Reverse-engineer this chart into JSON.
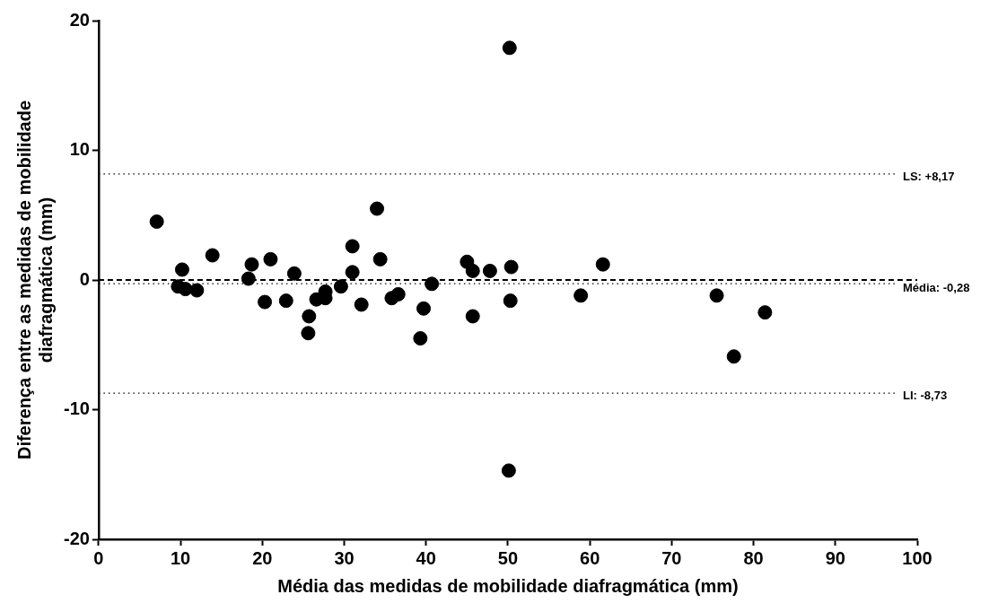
{
  "chart_data": {
    "type": "scatter",
    "xlabel": "Média das medidas de mobilidade diafragmática (mm)",
    "ylabel": "Diferença entre as medidas de mobilidade\ndiafragmática (mm)",
    "xlim": [
      0,
      100
    ],
    "xticks": [
      0,
      10,
      20,
      30,
      40,
      50,
      60,
      70,
      80,
      90,
      100
    ],
    "ylim": [
      -20,
      20
    ],
    "yticks": [
      -20,
      -10,
      0,
      10,
      20
    ],
    "grid": false,
    "legend": false,
    "marker": "circle",
    "x": [
      7.1,
      10.2,
      9.7,
      10.6,
      12.0,
      13.9,
      18.3,
      18.7,
      21.0,
      20.3,
      22.9,
      23.9,
      25.7,
      25.6,
      26.6,
      27.7,
      27.7,
      29.6,
      31.0,
      31.0,
      32.1,
      34.0,
      34.4,
      35.8,
      36.6,
      39.7,
      39.3,
      40.7,
      45.0,
      45.7,
      47.8,
      45.7,
      50.4,
      50.3,
      50.2,
      50.1,
      58.9,
      61.6,
      75.5,
      81.4,
      77.6
    ],
    "series": [
      {
        "color": "#000000",
        "values": [
          4.5,
          0.8,
          -0.5,
          -0.7,
          -0.8,
          1.9,
          0.1,
          1.2,
          1.6,
          -1.7,
          -1.6,
          0.5,
          -2.8,
          -4.1,
          -1.5,
          -1.4,
          -0.9,
          -0.5,
          2.6,
          0.6,
          -1.9,
          5.5,
          1.6,
          -1.4,
          -1.1,
          -2.2,
          -4.5,
          -0.3,
          1.4,
          0.7,
          0.7,
          -2.8,
          1.0,
          -1.6,
          17.9,
          -14.7,
          -1.2,
          1.2,
          -1.2,
          -2.5,
          -5.9
        ]
      }
    ],
    "ref_lines": [
      {
        "axis": "y",
        "value": 0,
        "label": null,
        "line_style": "dashed"
      },
      {
        "axis": "y",
        "value": -0.28,
        "label": "Média: -0,28",
        "line_style": "dotted"
      },
      {
        "axis": "y",
        "value": 8.17,
        "label": "LS: +8,17",
        "line_style": "dotted"
      },
      {
        "axis": "y",
        "value": -8.73,
        "label": "LI: -8,73",
        "line_style": "dotted"
      }
    ]
  }
}
